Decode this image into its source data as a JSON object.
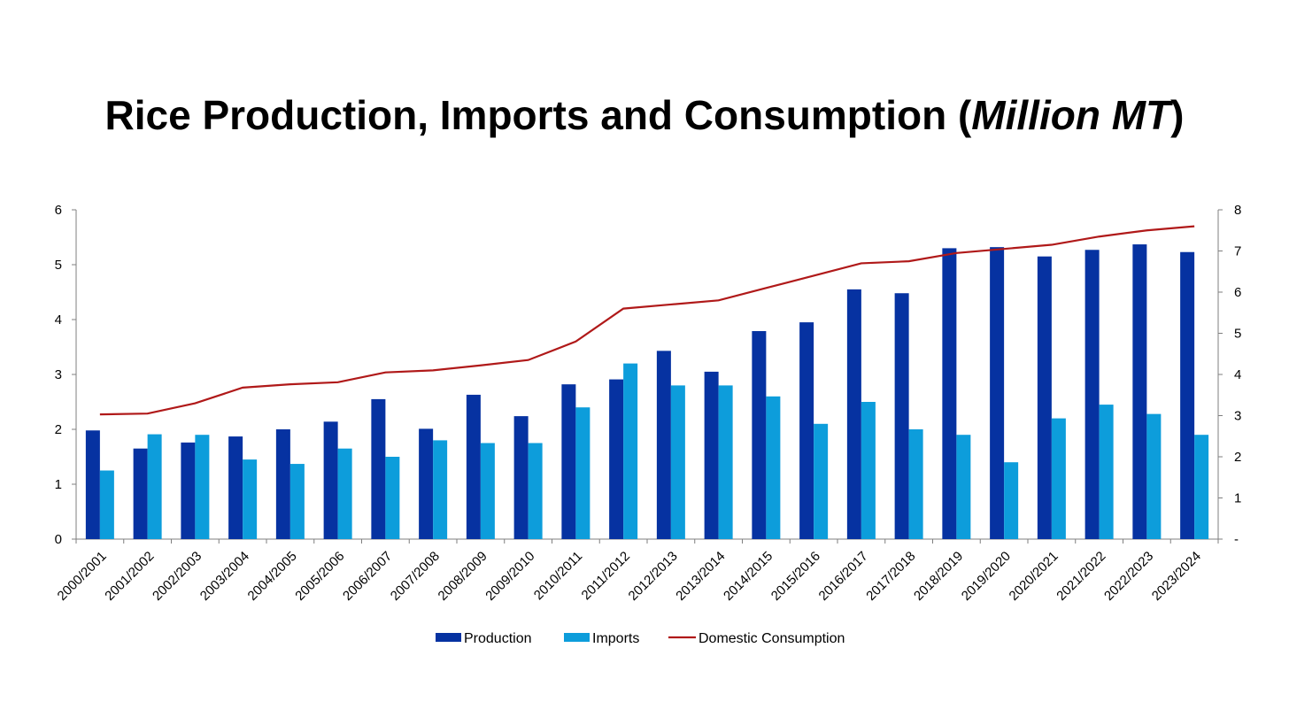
{
  "title": {
    "main": "Rice Production, Imports and Consumption (",
    "unit": "Million MT",
    "close": ")"
  },
  "colors": {
    "production": "#0632a1",
    "imports": "#0d9ddb",
    "consumption": "#b01919",
    "axis": "#7f7f7f"
  },
  "chart_data": {
    "type": "bar",
    "title": "Rice Production, Imports and Consumption (Million MT)",
    "categories": [
      "2000/2001",
      "2001/2002",
      "2002/2003",
      "2003/2004",
      "2004/2005",
      "2005/2006",
      "2006/2007",
      "2007/2008",
      "2008/2009",
      "2009/2010",
      "2010/2011",
      "2011/2012",
      "2012/2013",
      "2013/2014",
      "2014/2015",
      "2015/2016",
      "2016/2017",
      "2017/2018",
      "2018/2019",
      "2019/2020",
      "2020/2021",
      "2021/2022",
      "2022/2023",
      "2023/2024"
    ],
    "series": [
      {
        "name": "Production",
        "type": "bar",
        "axis": "left",
        "values": [
          1.98,
          1.65,
          1.76,
          1.87,
          2.0,
          2.14,
          2.55,
          2.01,
          2.63,
          2.24,
          2.82,
          2.91,
          3.43,
          3.05,
          3.79,
          3.95,
          4.55,
          4.48,
          5.3,
          5.32,
          5.15,
          5.27,
          5.37,
          5.23
        ]
      },
      {
        "name": "Imports",
        "type": "bar",
        "axis": "left",
        "values": [
          1.25,
          1.91,
          1.9,
          1.45,
          1.37,
          1.65,
          1.5,
          1.8,
          1.75,
          1.75,
          2.4,
          3.2,
          2.8,
          2.8,
          2.6,
          2.1,
          2.5,
          2.0,
          1.9,
          1.4,
          2.2,
          2.45,
          2.28,
          1.9
        ]
      },
      {
        "name": "Domestic Consumption",
        "type": "line",
        "axis": "right",
        "values": [
          3.03,
          3.05,
          3.3,
          3.68,
          3.76,
          3.81,
          4.05,
          4.1,
          4.22,
          4.35,
          4.8,
          5.6,
          5.7,
          5.8,
          6.1,
          6.4,
          6.7,
          6.75,
          6.95,
          7.05,
          7.15,
          7.35,
          7.5,
          7.6
        ]
      }
    ],
    "y_left": {
      "ylim": [
        0,
        6
      ],
      "ticks": [
        "0",
        "1",
        "2",
        "3",
        "4",
        "5",
        "6"
      ]
    },
    "y_right": {
      "ylim": [
        0,
        8
      ],
      "ticks": [
        "-",
        "1",
        "2",
        "3",
        "4",
        "5",
        "6",
        "7",
        "8"
      ]
    },
    "legend": {
      "placement": "bottom-center",
      "entries": [
        "Production",
        "Imports",
        "Domestic Consumption"
      ]
    },
    "grid": false
  }
}
